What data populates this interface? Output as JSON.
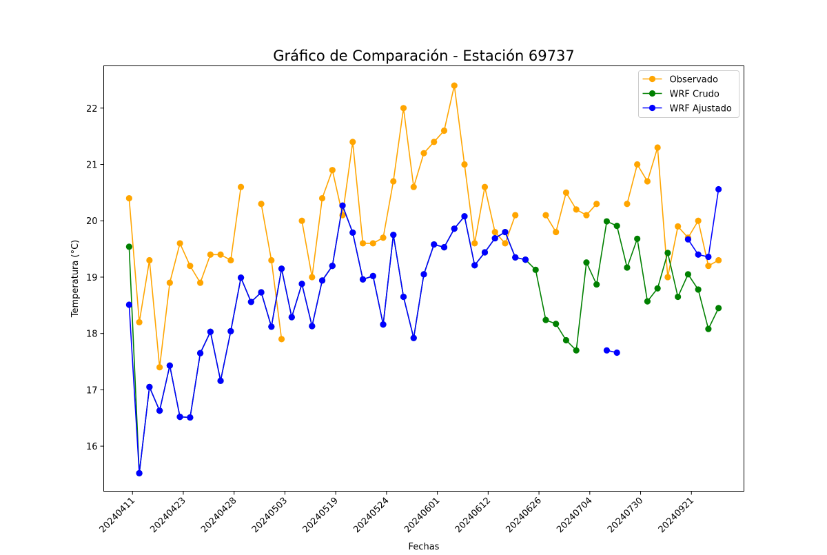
{
  "chart_data": {
    "type": "line",
    "title": "Gráfico de Comparación - Estación 69737",
    "xlabel": "Fechas",
    "ylabel": "Temperatura (°C)",
    "ylim": [
      15.2,
      22.75
    ],
    "yticks": [
      16,
      17,
      18,
      19,
      20,
      21,
      22
    ],
    "x_tick_labels": [
      "20240411",
      "20240423",
      "20240428",
      "20240503",
      "20240519",
      "20240524",
      "20240601",
      "20240612",
      "20240626",
      "20240704",
      "20240730",
      "20240921"
    ],
    "x_tick_positions": [
      0.33,
      5.33,
      10.33,
      15.33,
      20.33,
      25.33,
      30.33,
      35.33,
      40.33,
      45.33,
      50.33,
      55.33
    ],
    "legend_position": "top-right",
    "grid": false,
    "series": [
      {
        "name": "Observado",
        "color": "#ffa500",
        "values": [
          20.4,
          18.2,
          19.3,
          17.4,
          18.9,
          19.6,
          19.2,
          18.9,
          19.4,
          19.4,
          19.3,
          20.6,
          null,
          20.3,
          19.3,
          17.9,
          null,
          20.0,
          19.0,
          20.4,
          20.9,
          20.1,
          21.4,
          19.6,
          19.6,
          19.7,
          20.7,
          22.0,
          20.6,
          21.2,
          21.4,
          21.6,
          22.4,
          21.0,
          19.6,
          20.6,
          19.8,
          19.6,
          20.1,
          null,
          null,
          20.1,
          19.8,
          20.5,
          20.2,
          20.1,
          20.3,
          null,
          null,
          20.3,
          21.0,
          20.7,
          21.3,
          19.0,
          19.9,
          19.7,
          20.0,
          19.2,
          19.3
        ]
      },
      {
        "name": "WRF Crudo",
        "color": "#008000",
        "values": [
          19.54,
          15.52,
          17.05,
          16.63,
          17.43,
          16.52,
          16.51,
          17.65,
          18.03,
          17.16,
          18.04,
          18.99,
          18.56,
          18.73,
          18.12,
          19.15,
          18.29,
          18.88,
          18.13,
          18.94,
          19.2,
          20.27,
          19.79,
          18.96,
          19.02,
          18.16,
          19.75,
          18.65,
          17.92,
          19.05,
          19.58,
          19.53,
          19.86,
          20.08,
          19.21,
          19.44,
          19.69,
          19.8,
          19.35,
          19.31,
          19.13,
          18.24,
          18.17,
          17.88,
          17.7,
          19.26,
          18.87,
          19.99,
          19.91,
          19.17,
          19.68,
          18.57,
          18.8,
          19.43,
          18.65,
          19.05,
          18.78,
          18.08,
          18.45
        ]
      },
      {
        "name": "WRF Ajustado",
        "color": "#0000ff",
        "values": [
          18.51,
          15.52,
          17.05,
          16.63,
          17.43,
          16.52,
          16.51,
          17.65,
          18.03,
          17.16,
          18.04,
          18.99,
          18.56,
          18.73,
          18.12,
          19.15,
          18.29,
          18.88,
          18.13,
          18.94,
          19.2,
          20.27,
          19.79,
          18.96,
          19.02,
          18.16,
          19.75,
          18.65,
          17.92,
          19.05,
          19.58,
          19.53,
          19.86,
          20.08,
          19.21,
          19.44,
          19.69,
          19.8,
          19.35,
          19.31,
          null,
          null,
          null,
          null,
          null,
          null,
          null,
          17.7,
          17.66,
          null,
          null,
          null,
          null,
          null,
          null,
          19.67,
          19.4,
          19.36,
          20.56
        ]
      }
    ]
  }
}
